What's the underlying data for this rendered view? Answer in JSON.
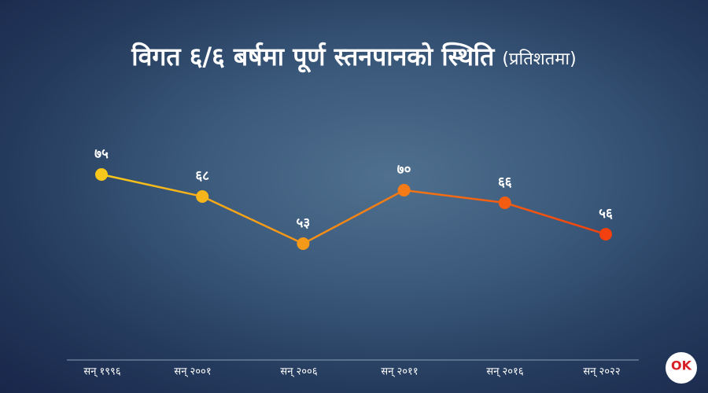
{
  "chart_data": {
    "type": "line",
    "title": "विगत ६/६ बर्षमा पूर्ण स्तनपानको स्थिति",
    "subtitle": "(प्रतिशतमा)",
    "categories": [
      "सन् १९९६",
      "सन् २००१",
      "सन् २००६",
      "सन् २०११",
      "सन् २०१६",
      "सन् २०२२"
    ],
    "values": [
      75,
      68,
      53,
      70,
      66,
      56
    ],
    "value_labels": [
      "७५",
      "६८",
      "५३",
      "७०",
      "६६",
      "५६"
    ],
    "point_colors": [
      "#f7c81b",
      "#f6b51a",
      "#f59a18",
      "#f47b16",
      "#f35d12",
      "#f2410e"
    ],
    "logo": "OK"
  }
}
